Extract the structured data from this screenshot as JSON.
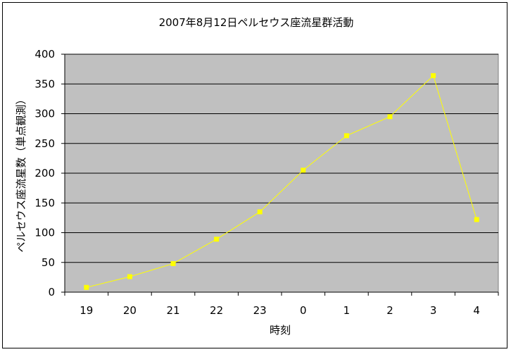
{
  "chart_data": {
    "type": "line",
    "title": "2007年8月12日ペルセウス座流星群活動",
    "xlabel": "時刻",
    "ylabel": "ペルセウス座流星数（単点観測）",
    "categories": [
      "19",
      "20",
      "21",
      "22",
      "23",
      "0",
      "1",
      "2",
      "3",
      "4"
    ],
    "series": [
      {
        "values": [
          8,
          26,
          48,
          89,
          135,
          205,
          263,
          295,
          364,
          122
        ]
      }
    ],
    "ylim": [
      0,
      400
    ],
    "yticks": [
      "0",
      "50",
      "100",
      "150",
      "200",
      "250",
      "300",
      "350",
      "400"
    ],
    "grid": true,
    "legend": "none",
    "colors": {
      "plot_background": "#c0c0c0",
      "line": "#ffff00",
      "marker": "#ffff00",
      "gridline": "#000000"
    }
  }
}
